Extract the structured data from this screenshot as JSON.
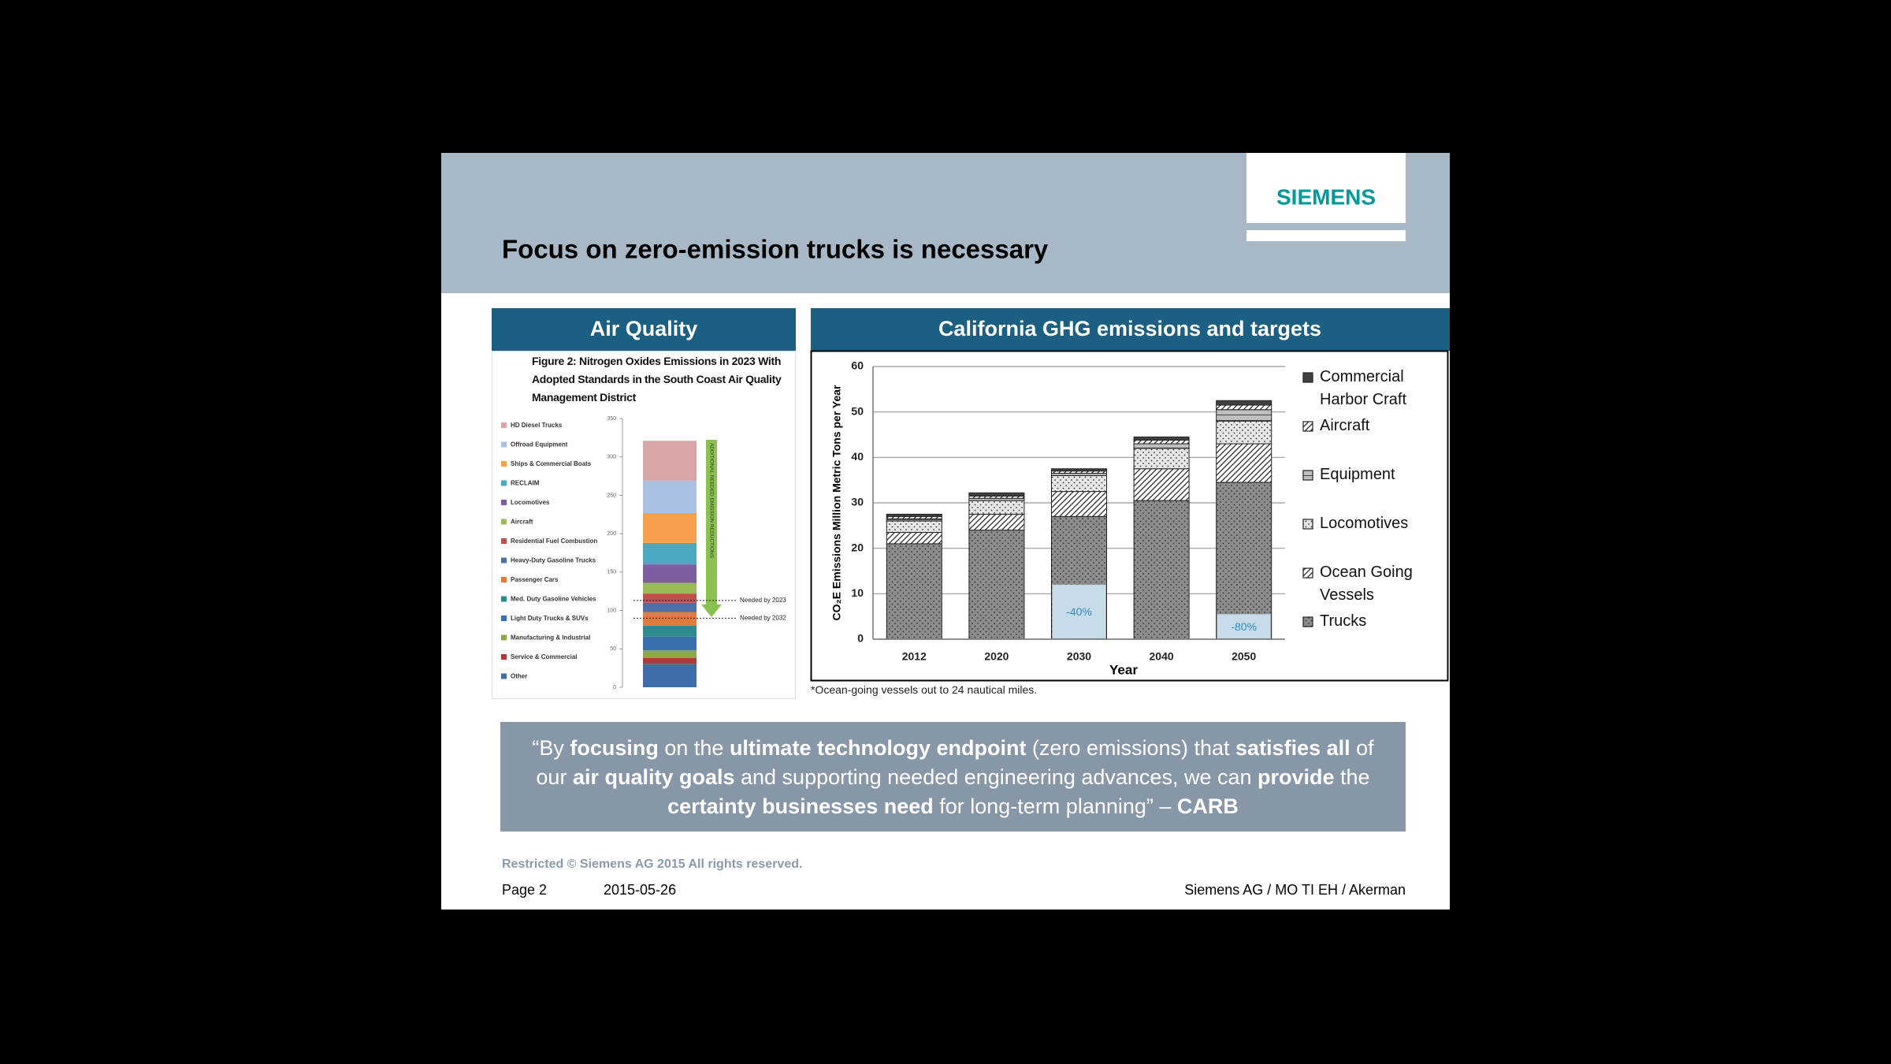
{
  "header": {
    "title": "Focus on zero-emission trucks is necessary",
    "logo": "SIEMENS"
  },
  "panels": {
    "left_title": "Air Quality",
    "right_title": "California GHG emissions and targets"
  },
  "chart_data": [
    {
      "type": "stacked_bar",
      "title": "Figure 2: Nitrogen Oxides Emissions in 2023 With Adopted Standards in the South Coast Air Quality Management District",
      "series": [
        {
          "name": "HD Diesel Trucks",
          "color": "#d8a5a7",
          "values": [
            52
          ]
        },
        {
          "name": "Offroad Equipment",
          "color": "#a9c0e0",
          "values": [
            42
          ]
        },
        {
          "name": "Ships & Commercial Boats",
          "color": "#f5a04a",
          "values": [
            39
          ]
        },
        {
          "name": "RECLAIM",
          "color": "#4aa8c0",
          "values": [
            28
          ]
        },
        {
          "name": "Locomotives",
          "color": "#7d5fa0",
          "values": [
            24
          ]
        },
        {
          "name": "Aircraft",
          "color": "#9bbb59",
          "values": [
            14
          ]
        },
        {
          "name": "Residential Fuel Combustion",
          "color": "#c0504d",
          "values": [
            12
          ]
        },
        {
          "name": "Heavy-Duty Gasoline Trucks",
          "color": "#4f6fa8",
          "values": [
            12
          ]
        },
        {
          "name": "Passenger Cars",
          "color": "#e07b39",
          "values": [
            18
          ]
        },
        {
          "name": "Med. Duty Gasoline Vehicles",
          "color": "#2e8b8b",
          "values": [
            14
          ]
        },
        {
          "name": "Light Duty Trucks & SUVs",
          "color": "#3b6fb0",
          "values": [
            18
          ]
        },
        {
          "name": "Manufacturing & Industrial",
          "color": "#8aa84a",
          "values": [
            10
          ]
        },
        {
          "name": "Service & Commercial",
          "color": "#b03a3a",
          "values": [
            8
          ]
        },
        {
          "name": "Other",
          "color": "#3f6eaa",
          "values": [
            30
          ]
        }
      ],
      "ylim": [
        0,
        350
      ],
      "yticks": [
        0,
        50,
        100,
        150,
        200,
        250,
        300,
        350
      ],
      "annotation": "ADDITIONAL NEEDED EMISSION REDUCTIONS",
      "arrow_color": "#8cc152",
      "reference_lines": [
        {
          "value": 113,
          "label": "Needed by 2023"
        },
        {
          "value": 90,
          "label": "Needed by 2032"
        }
      ]
    },
    {
      "type": "stacked_bar",
      "categories": [
        "2012",
        "2020",
        "2030",
        "2040",
        "2050"
      ],
      "xlabel": "Year",
      "ylabel": "CO₂E Emissions Million Metric Tons per Year",
      "ylim": [
        0,
        60
      ],
      "yticks": [
        0,
        10,
        20,
        30,
        40,
        50,
        60
      ],
      "grid": true,
      "series": [
        {
          "name": "Commercial Harbor Craft",
          "color": "#404040",
          "pattern": "solid",
          "values": [
            0.5,
            0.7,
            0.5,
            0.7,
            1
          ]
        },
        {
          "name": "Aircraft",
          "color": "#ffffff",
          "pattern": "diagonal",
          "values": [
            0.5,
            0.5,
            0.5,
            0.8,
            1
          ]
        },
        {
          "name": "Equipment",
          "color": "#bfbfbf",
          "pattern": "lines",
          "values": [
            0.5,
            0.5,
            0.5,
            1,
            2.5
          ]
        },
        {
          "name": "Locomotives",
          "color": "#e6e6e6",
          "pattern": "dots",
          "values": [
            2.5,
            3,
            3.5,
            4.5,
            5
          ]
        },
        {
          "name": "Ocean Going Vessels",
          "color": "#ffffff",
          "pattern": "diagonal",
          "values": [
            2.5,
            3.5,
            5.5,
            7,
            8.5
          ]
        },
        {
          "name": "Trucks",
          "color": "#8c8c8c",
          "pattern": "dots",
          "values": [
            21,
            24,
            27,
            30.5,
            34.5
          ]
        }
      ],
      "target_values": [
        null,
        null,
        12,
        null,
        5.5
      ],
      "target_texts": [
        null,
        null,
        "-40%",
        null,
        "-80%"
      ],
      "target_color": "#c8dbe8"
    }
  ],
  "footnote": "*Ocean-going vessels out to 24 nautical miles.",
  "quote": {
    "runs": [
      {
        "text": "“By ",
        "bold": false
      },
      {
        "text": "focusing",
        "bold": true
      },
      {
        "text": " on the ",
        "bold": false
      },
      {
        "text": "ultimate technology endpoint",
        "bold": true
      },
      {
        "text": " (zero emissions) that ",
        "bold": false
      },
      {
        "text": "satisfies all",
        "bold": true
      },
      {
        "text": " of our ",
        "bold": false
      },
      {
        "text": "air quality goals",
        "bold": true
      },
      {
        "text": " and supporting needed engineering advances, we can ",
        "bold": false
      },
      {
        "text": "provide",
        "bold": true
      },
      {
        "text": " the ",
        "bold": false
      },
      {
        "text": "certainty businesses need",
        "bold": true
      },
      {
        "text": " for long-term planning” – ",
        "bold": false
      },
      {
        "text": "CARB",
        "bold": true
      }
    ]
  },
  "footer": {
    "restricted": "Restricted © Siemens AG 2015 All rights reserved.",
    "page": "Page 2",
    "date": "2015-05-26",
    "author": "Siemens AG / MO TI EH / Akerman"
  }
}
